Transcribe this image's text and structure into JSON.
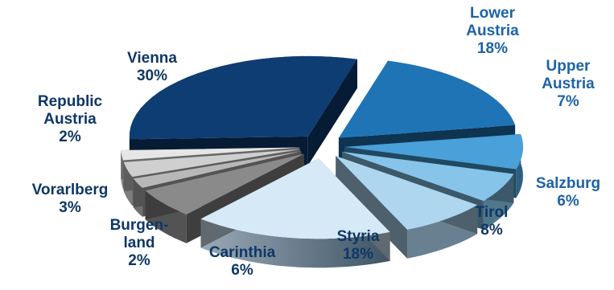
{
  "chart_data": {
    "type": "pie",
    "style": "3d-exploded",
    "slices": [
      {
        "label_lines": [
          "Lower",
          "Austria"
        ],
        "value_label": "18%",
        "value": 18,
        "color": "#1f74b6",
        "label_color": "#1d63a6"
      },
      {
        "label_lines": [
          "Upper",
          "Austria"
        ],
        "value_label": "7%",
        "value": 7,
        "color": "#4aa0d8",
        "label_color": "#1d63a6"
      },
      {
        "label_lines": [
          "Salzburg"
        ],
        "value_label": "6%",
        "value": 6,
        "color": "#86c4ea",
        "label_color": "#1d63a6"
      },
      {
        "label_lines": [
          "Tirol"
        ],
        "value_label": "8%",
        "value": 8,
        "color": "#aed6ef",
        "label_color": "#0e3766"
      },
      {
        "label_lines": [
          "Styria"
        ],
        "value_label": "18%",
        "value": 18,
        "color": "#d6e9f6",
        "label_color": "#0e3766"
      },
      {
        "label_lines": [
          "Carinthia"
        ],
        "value_label": "6%",
        "value": 6,
        "color": "#8a8a8a",
        "label_color": "#0e3766"
      },
      {
        "label_lines": [
          "Burgen-",
          "land"
        ],
        "value_label": "2%",
        "value": 2,
        "color": "#b8b8b8",
        "label_color": "#0e3766"
      },
      {
        "label_lines": [
          "Vorarlberg"
        ],
        "value_label": "3%",
        "value": 3,
        "color": "#cfcfcf",
        "label_color": "#0e3766"
      },
      {
        "label_lines": [
          "Republic",
          "Austria"
        ],
        "value_label": "2%",
        "value": 2,
        "color": "#e6e6e6",
        "label_color": "#0e3766"
      },
      {
        "label_lines": [
          "Vienna"
        ],
        "value_label": "30%",
        "value": 30,
        "color": "#0e3d73",
        "label_color": "#0e3766"
      }
    ]
  }
}
